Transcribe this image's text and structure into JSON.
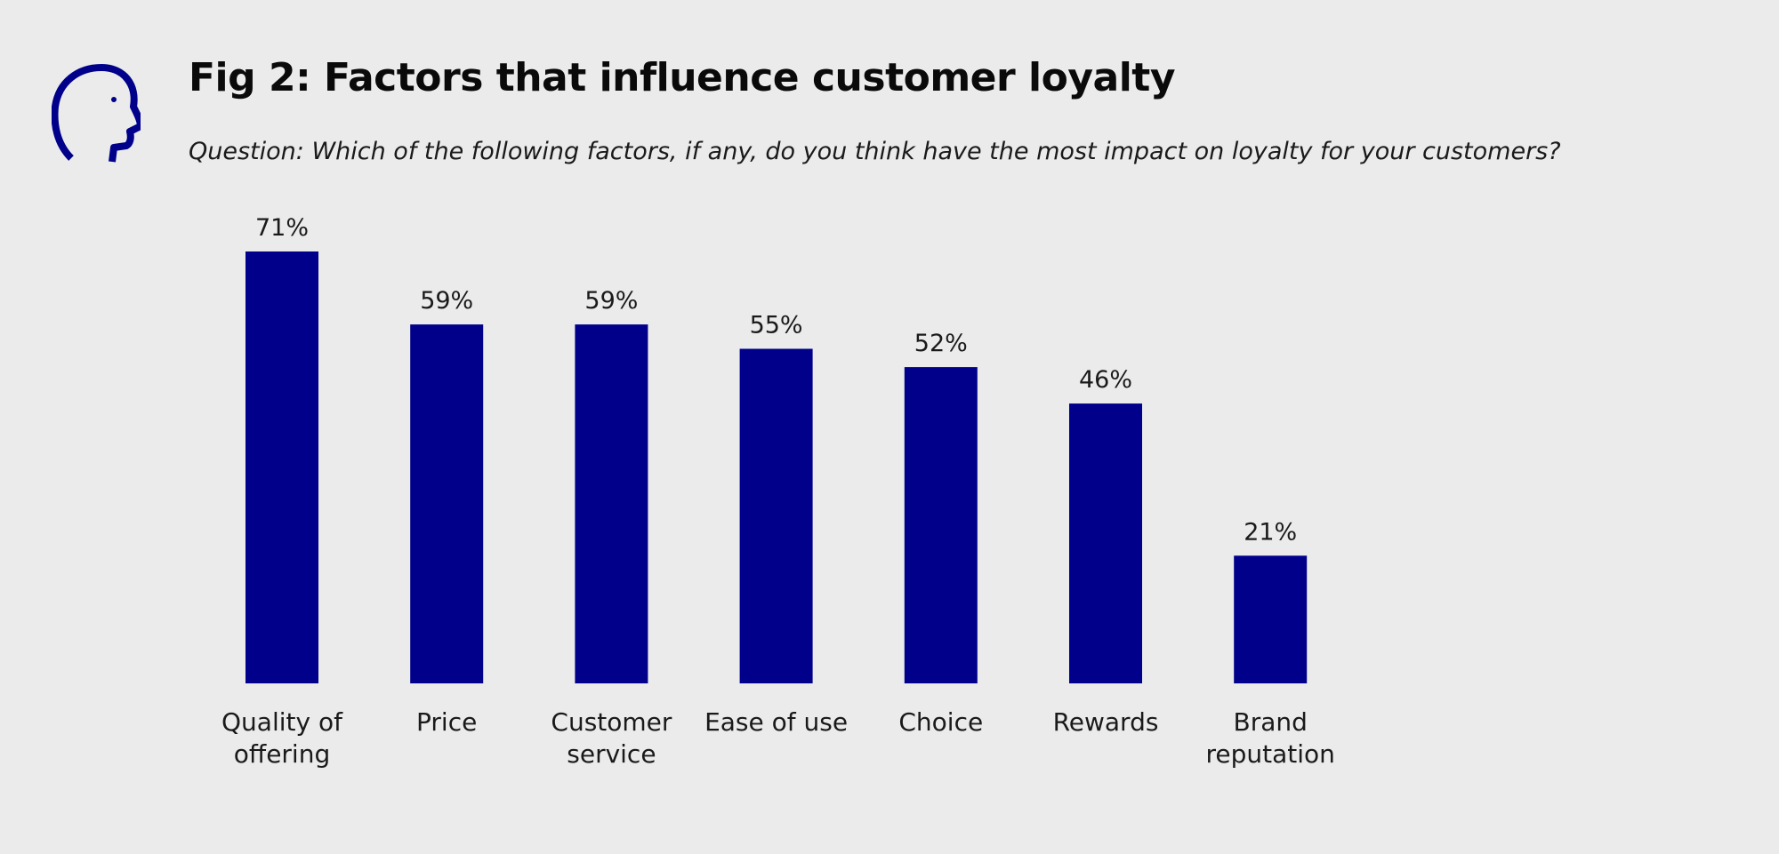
{
  "header": {
    "title": "Fig 2: Factors that influence customer loyalty",
    "subtitle": "Question: Which of the following factors, if any, do you think have the most impact on loyalty for your customers?",
    "icon": "head-profile-icon"
  },
  "colors": {
    "background": "#ebebeb",
    "bar": "#00008b",
    "icon": "#00008b",
    "text": "#1a1a1a"
  },
  "chart_data": {
    "type": "bar",
    "categories": [
      [
        "Quality of",
        "offering"
      ],
      [
        "Price"
      ],
      [
        "Customer",
        "service"
      ],
      [
        "Ease of use"
      ],
      [
        "Choice"
      ],
      [
        "Rewards"
      ],
      [
        "Brand",
        "reputation"
      ]
    ],
    "values": [
      71,
      59,
      59,
      55,
      52,
      46,
      21
    ],
    "value_labels": [
      "71%",
      "59%",
      "59%",
      "55%",
      "52%",
      "46%",
      "21%"
    ],
    "unit": "%",
    "title": "Fig 2: Factors that influence customer loyalty",
    "subtitle": "Question: Which of the following factors, if any, do you think have the most impact on loyalty for your customers?",
    "xlabel": "",
    "ylabel": "",
    "ylim": [
      0,
      71
    ],
    "grid": false,
    "legend": "none"
  }
}
